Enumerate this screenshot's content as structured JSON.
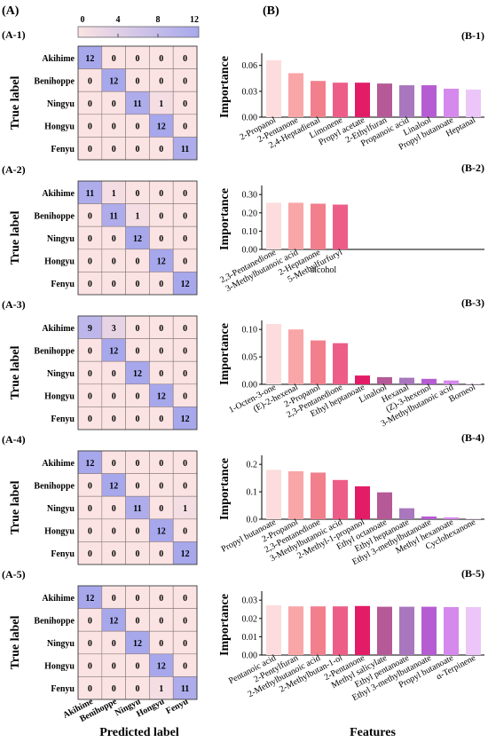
{
  "panel_labels": {
    "left": "(A)",
    "right": "(B)"
  },
  "colorbar": {
    "ticks": [
      "0",
      "4",
      "8",
      "12"
    ],
    "min": 0,
    "max": 12,
    "low_color": "#fbe3e3",
    "high_color": "#a7a7ec"
  },
  "matrix_axes": {
    "ylabel": "True label",
    "xlabel": "Predicted label",
    "class_labels": [
      "Akihime",
      "Benihoppe",
      "Ningyu",
      "Hongyu",
      "Fenyu"
    ]
  },
  "bar_axes": {
    "ylabel": "Importance",
    "xlabel": "Features"
  },
  "series_colors": [
    "#fcdcdc",
    "#f8a6a8",
    "#f27f8c",
    "#ee5d88",
    "#e31c68",
    "#b55a97",
    "#a877bd",
    "#b65cd3",
    "#d689ec",
    "#ecc6f8"
  ],
  "chart_data": [
    {
      "type": "heatmap",
      "title": "(A-1)",
      "matrix": [
        [
          12,
          0,
          0,
          0,
          0
        ],
        [
          0,
          12,
          0,
          0,
          0
        ],
        [
          0,
          0,
          11,
          1,
          0
        ],
        [
          0,
          0,
          0,
          12,
          0
        ],
        [
          0,
          0,
          0,
          0,
          11
        ]
      ]
    },
    {
      "type": "heatmap",
      "title": "(A-2)",
      "matrix": [
        [
          11,
          1,
          0,
          0,
          0
        ],
        [
          0,
          11,
          1,
          0,
          0
        ],
        [
          0,
          0,
          12,
          0,
          0
        ],
        [
          0,
          0,
          0,
          12,
          0
        ],
        [
          0,
          0,
          0,
          0,
          12
        ]
      ]
    },
    {
      "type": "heatmap",
      "title": "(A-3)",
      "matrix": [
        [
          9,
          3,
          0,
          0,
          0
        ],
        [
          0,
          12,
          0,
          0,
          0
        ],
        [
          0,
          0,
          12,
          0,
          0
        ],
        [
          0,
          0,
          0,
          12,
          0
        ],
        [
          0,
          0,
          0,
          0,
          12
        ]
      ]
    },
    {
      "type": "heatmap",
      "title": "(A-4)",
      "matrix": [
        [
          12,
          0,
          0,
          0,
          0
        ],
        [
          0,
          12,
          0,
          0,
          0
        ],
        [
          0,
          0,
          11,
          0,
          1
        ],
        [
          0,
          0,
          0,
          12,
          0
        ],
        [
          0,
          0,
          0,
          0,
          12
        ]
      ]
    },
    {
      "type": "heatmap",
      "title": "(A-5)",
      "matrix": [
        [
          12,
          0,
          0,
          0,
          0
        ],
        [
          0,
          12,
          0,
          0,
          0
        ],
        [
          0,
          0,
          12,
          0,
          0
        ],
        [
          0,
          0,
          0,
          12,
          0
        ],
        [
          0,
          0,
          0,
          1,
          11
        ]
      ]
    },
    {
      "type": "bar",
      "title": "(B-1)",
      "ylim": [
        0,
        0.07
      ],
      "yticks": [
        "0.00",
        "0.03",
        "0.06"
      ],
      "ytick_values": [
        0,
        0.03,
        0.06
      ],
      "categories": [
        "2-Propanol",
        "2-Pentanone",
        "2,4-Heptadienal",
        "Limonene",
        "Propyl acetate",
        "2-Ethylfuran",
        "Propanoic acid",
        "Linalool",
        "Propyl butanoate",
        "Heptanal"
      ],
      "values": [
        0.066,
        0.051,
        0.042,
        0.04,
        0.04,
        0.039,
        0.037,
        0.037,
        0.033,
        0.032
      ]
    },
    {
      "type": "bar",
      "title": "(B-2)",
      "ylim": [
        0,
        0.33
      ],
      "yticks": [
        "0.00",
        "0.10",
        "0.20",
        "0.30"
      ],
      "ytick_values": [
        0,
        0.1,
        0.2,
        0.3
      ],
      "categories": [
        "2,3-Pentanedione",
        "3-Methylbutanoic acid",
        "2-Heptanone",
        "5-Methylfurfuryl alcohol"
      ],
      "values": [
        0.255,
        0.255,
        0.25,
        0.245
      ]
    },
    {
      "type": "bar",
      "title": "(B-3)",
      "ylim": [
        0,
        0.11
      ],
      "yticks": [
        "0.00",
        "0.05",
        "0.10"
      ],
      "ytick_values": [
        0,
        0.05,
        0.1
      ],
      "categories": [
        "1-Octen-3-one",
        "(E)-2-hexenal",
        "2-Propanol",
        "2,3-Pentanedione",
        "Ethyl heptanoate",
        "Linalool",
        "Hexanal",
        "(Z)-3-hexenol",
        "3-Methylbutanoic acid",
        "Borneol"
      ],
      "values": [
        0.11,
        0.1,
        0.08,
        0.075,
        0.016,
        0.013,
        0.012,
        0.01,
        0.007,
        0.001
      ]
    },
    {
      "type": "bar",
      "title": "(B-4)",
      "ylim": [
        0,
        0.22
      ],
      "yticks": [
        "0.0",
        "0.1",
        "0.2"
      ],
      "ytick_values": [
        0,
        0.1,
        0.2
      ],
      "categories": [
        "Propyl butanoate",
        "2-Propanol",
        "2,3-Pentanedione",
        "3-Methylbutanoic acid",
        "2-Methyl-1-propanol",
        "Ethyl octanoate",
        "Ethyl heptanoate",
        "Ethyl 3-methylbutanoate",
        "Methyl hexanoate",
        "Cyclohexanone"
      ],
      "values": [
        0.18,
        0.175,
        0.17,
        0.143,
        0.12,
        0.098,
        0.04,
        0.01,
        0.007,
        0.002
      ]
    },
    {
      "type": "bar",
      "title": "(B-5)",
      "ylim": [
        0,
        0.033
      ],
      "yticks": [
        "0.00",
        "0.01",
        "0.02",
        "0.03"
      ],
      "ytick_values": [
        0,
        0.01,
        0.02,
        0.03
      ],
      "categories": [
        "Pentanoic acid",
        "2-Pentylfuran",
        "2-Methylbutanoic acid",
        "2-Methylbutan-1-ol",
        "2-Pentanone",
        "Methyl salicylate",
        "Ethyl pentanoate",
        "Ethyl 3-methylbutanoate",
        "Propyl butanoate",
        "α-Terpinene"
      ],
      "values": [
        0.0272,
        0.0266,
        0.0266,
        0.0266,
        0.0268,
        0.0264,
        0.0264,
        0.0264,
        0.0262,
        0.0262
      ]
    }
  ]
}
